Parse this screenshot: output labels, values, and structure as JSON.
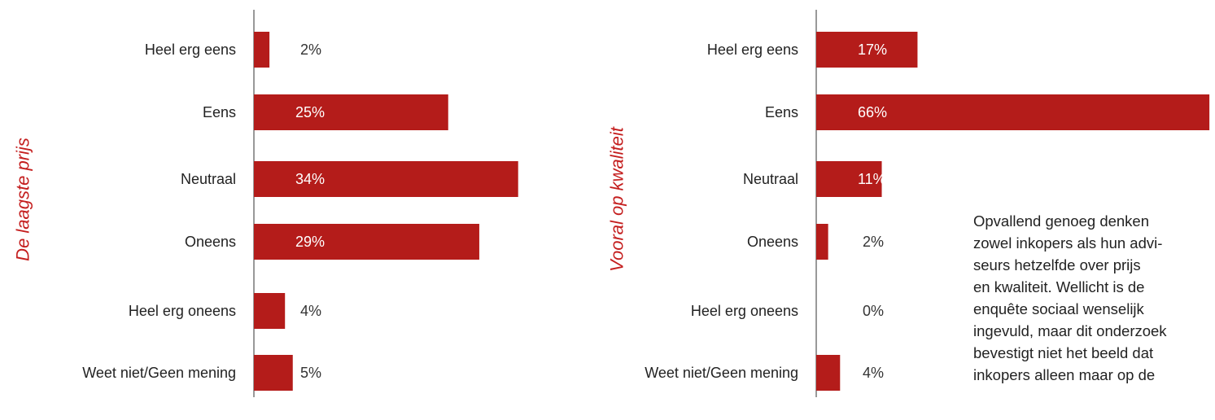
{
  "colors": {
    "bar": "#b41c1a",
    "title": "#c41e1e",
    "axis": "#333333",
    "label_inside": "#ffffff",
    "label_outside": "#333333",
    "text": "#222222"
  },
  "chart_data": [
    {
      "type": "bar",
      "orientation": "horizontal",
      "title": "De laagste prijs",
      "categories": [
        "Heel erg eens",
        "Eens",
        "Neutraal",
        "Oneens",
        "Heel erg oneens",
        "Weet niet/Geen mening"
      ],
      "values": [
        2,
        25,
        34,
        29,
        4,
        5
      ],
      "value_labels": [
        "2%",
        "25%",
        "34%",
        "29%",
        "4%",
        "5%"
      ],
      "unit": "%",
      "grid": false,
      "legend": "none"
    },
    {
      "type": "bar",
      "orientation": "horizontal",
      "title": "Vooral op kwaliteit",
      "categories": [
        "Heel erg eens",
        "Eens",
        "Neutraal",
        "Oneens",
        "Heel erg oneens",
        "Weet niet/Geen mening"
      ],
      "values": [
        17,
        66,
        11,
        2,
        0,
        4
      ],
      "value_labels": [
        "17%",
        "66%",
        "11%",
        "2%",
        "0%",
        "4%"
      ],
      "unit": "%",
      "grid": false,
      "legend": "none"
    }
  ],
  "side_text": {
    "lines": [
      "Opvallend genoeg denken",
      "zowel inkopers als hun advi-",
      "seurs hetzelfde over prijs",
      "en kwaliteit. Wellicht is de",
      "enquête sociaal wenselijk",
      "ingevuld, maar dit onderzoek",
      "bevestigt niet het beeld dat",
      "inkopers alleen maar op de"
    ]
  }
}
